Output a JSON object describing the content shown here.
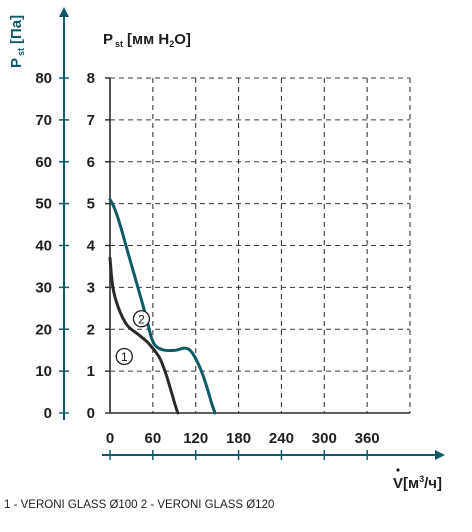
{
  "chart_data": {
    "type": "line",
    "left_axis": {
      "label_main": "P",
      "label_sub": "st",
      "label_unit": "[Па]",
      "ticks": [
        "0",
        "10",
        "20",
        "30",
        "40",
        "50",
        "60",
        "70",
        "80"
      ],
      "range": [
        0,
        80
      ]
    },
    "inner_axis": {
      "label_main": "P",
      "label_sub": "st",
      "label_unit_a": "[мм H",
      "label_unit_sub": "2",
      "label_unit_b": "O]",
      "ticks": [
        "0",
        "1",
        "2",
        "3",
        "4",
        "5",
        "6",
        "7",
        "8"
      ],
      "range": [
        0,
        8
      ]
    },
    "x_axis": {
      "label_main": "V",
      "label_unit_a": "[м",
      "label_unit_sup": "3",
      "label_unit_b": "/ч]",
      "ticks": [
        "0",
        "60",
        "120",
        "180",
        "240",
        "300",
        "360"
      ],
      "range": [
        0,
        420
      ]
    },
    "grid": true,
    "series": [
      {
        "marker": "1",
        "color": "#2a2a2a",
        "points": [
          [
            0,
            37
          ],
          [
            4,
            30
          ],
          [
            12,
            25
          ],
          [
            24,
            21
          ],
          [
            40,
            18.7
          ],
          [
            52,
            17
          ],
          [
            62,
            15
          ],
          [
            70,
            13
          ],
          [
            78,
            9.5
          ],
          [
            86,
            5
          ],
          [
            92,
            1.5
          ],
          [
            95,
            0
          ]
        ]
      },
      {
        "marker": "2",
        "color": "#0d5a66",
        "points": [
          [
            0,
            51
          ],
          [
            6,
            49
          ],
          [
            14,
            45
          ],
          [
            24,
            39
          ],
          [
            34,
            33
          ],
          [
            44,
            27
          ],
          [
            52,
            22
          ],
          [
            58,
            18
          ],
          [
            64,
            16
          ],
          [
            76,
            15
          ],
          [
            92,
            15
          ],
          [
            104,
            15.5
          ],
          [
            112,
            15
          ],
          [
            120,
            13
          ],
          [
            128,
            10
          ],
          [
            136,
            6
          ],
          [
            142,
            2.5
          ],
          [
            147,
            0
          ]
        ]
      }
    ],
    "legend_text": "1 - VERONI GLASS Ø100   2 - VERONI GLASS Ø120"
  }
}
